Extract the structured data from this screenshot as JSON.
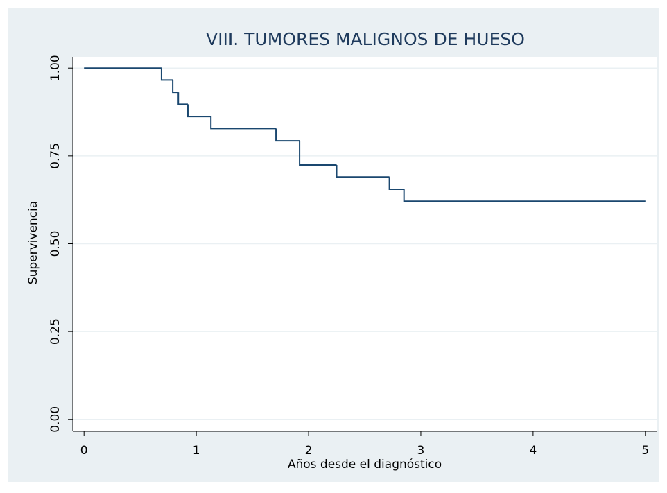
{
  "chart_data": {
    "type": "line",
    "step": "post",
    "title": "VIII. TUMORES MALIGNOS DE HUESO",
    "xlabel": "Años desde el diagnóstico",
    "ylabel": "Supervivencia",
    "x": [
      0,
      0.69,
      0.79,
      0.84,
      0.925,
      1.13,
      1.71,
      1.92,
      2.25,
      2.72,
      2.85,
      5.0
    ],
    "values": [
      1.0,
      0.966,
      0.931,
      0.897,
      0.862,
      0.828,
      0.793,
      0.724,
      0.69,
      0.655,
      0.621,
      0.621
    ],
    "color": "#1a476f",
    "xlim": [
      -0.1,
      5.1
    ],
    "xticks": [
      0,
      1,
      2,
      3,
      4,
      5
    ],
    "ylim": [
      -0.034,
      1.032
    ],
    "yticks": [
      {
        "value": 0,
        "label": "0.00"
      },
      {
        "value": 0.25,
        "label": "0.25"
      },
      {
        "value": 0.5,
        "label": "0.50"
      },
      {
        "value": 0.75,
        "label": "0.75"
      },
      {
        "value": 1,
        "label": "1.00"
      }
    ],
    "grid": true
  }
}
